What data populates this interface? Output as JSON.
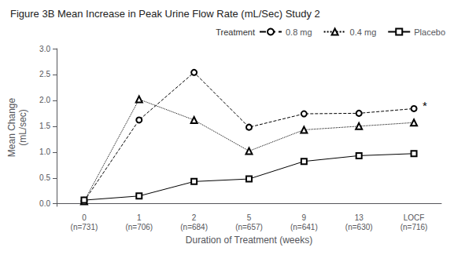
{
  "chart_data": {
    "type": "line",
    "title": "Figure 3B Mean Increase in Peak Urine Flow Rate (mL/Sec) Study 2",
    "xlabel": "Duration of Treatment (weeks)",
    "ylabel": [
      "Mean Change",
      "(mL/sec)"
    ],
    "categories": [
      "0\n(n=731)",
      "1\n(n=706)",
      "2\n(n=684)",
      "5\n(n=657)",
      "9\n(n=641)",
      "13\n(n=630)",
      "LOCF\n(n=716)"
    ],
    "ylim": [
      -0.05,
      3.0
    ],
    "yticks": [
      {
        "value": 0.0,
        "label": "0.0"
      },
      0.5,
      {
        "value": 1.0,
        "label": "1.0"
      },
      1.5,
      {
        "value": 2.0,
        "label": "2.0"
      },
      2.5,
      {
        "value": 3.0,
        "label": "3.0"
      }
    ],
    "grid": false,
    "legend": "upper right",
    "legend_title": "Treatment",
    "series": [
      {
        "name": "0.8 mg",
        "color": "#000000",
        "marker": "circle",
        "line_style": "dashed",
        "values": [
          0.05,
          1.62,
          2.54,
          1.48,
          1.74,
          1.75,
          1.84
        ]
      },
      {
        "name": "0.4 mg",
        "color": "#000000",
        "marker": "triangle",
        "line_style": "dotted",
        "values": [
          0.05,
          2.02,
          1.62,
          1.02,
          1.43,
          1.5,
          1.57
        ]
      },
      {
        "name": "Placebo",
        "color": "#000000",
        "marker": "square",
        "line_style": "solid",
        "values": [
          0.07,
          0.15,
          0.43,
          0.48,
          0.82,
          0.93,
          0.97
        ]
      }
    ],
    "annotations": [
      {
        "text": "*",
        "category": "LOCF\n(n=716)",
        "y": 1.9
      }
    ]
  }
}
